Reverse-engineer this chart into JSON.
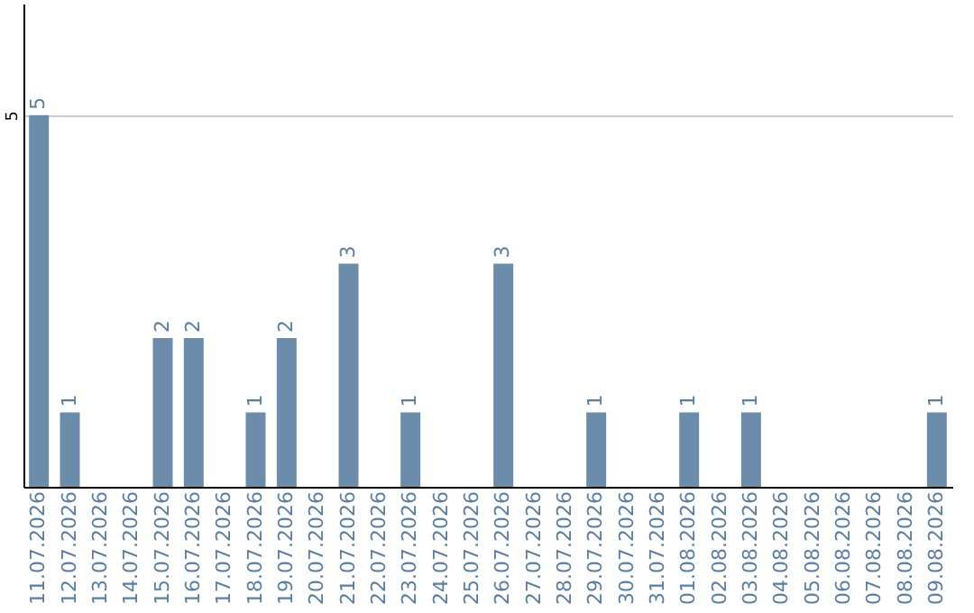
{
  "chart_data": {
    "type": "bar",
    "categories": [
      "11.07.2026",
      "12.07.2026",
      "13.07.2026",
      "14.07.2026",
      "15.07.2026",
      "16.07.2026",
      "17.07.2026",
      "18.07.2026",
      "19.07.2026",
      "20.07.2026",
      "21.07.2026",
      "22.07.2026",
      "23.07.2026",
      "24.07.2026",
      "25.07.2026",
      "26.07.2026",
      "27.07.2026",
      "28.07.2026",
      "29.07.2026",
      "30.07.2026",
      "31.07.2026",
      "01.08.2026",
      "02.08.2026",
      "03.08.2026",
      "04.08.2026",
      "05.08.2026",
      "06.08.2026",
      "07.08.2026",
      "08.08.2026",
      "09.08.2026"
    ],
    "values": [
      5,
      1,
      0,
      0,
      2,
      2,
      0,
      1,
      2,
      0,
      3,
      0,
      1,
      0,
      0,
      3,
      0,
      0,
      1,
      0,
      0,
      1,
      0,
      1,
      0,
      0,
      0,
      0,
      0,
      1
    ],
    "value_labels": [
      "5",
      "1",
      null,
      null,
      "2",
      "2",
      null,
      "1",
      "2",
      null,
      "3",
      null,
      "1",
      null,
      null,
      "3",
      null,
      null,
      "1",
      null,
      null,
      "1",
      null,
      "1",
      null,
      null,
      null,
      null,
      null,
      "1"
    ],
    "color": "#6b8caa",
    "ylim": [
      0,
      6.5
    ],
    "yticks": [
      5
    ],
    "grid": "y"
  }
}
